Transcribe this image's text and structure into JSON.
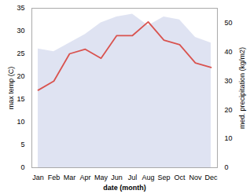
{
  "chart_data": {
    "type": "line",
    "xlabel": "date (month)",
    "ylabel": "max temp (C)",
    "y2label": "med. precipitation (kg/m2)",
    "categories": [
      "Jan",
      "Feb",
      "Mar",
      "Apr",
      "May",
      "Jun",
      "Jul",
      "Aug",
      "Sep",
      "Oct",
      "Nov",
      "Dec"
    ],
    "series": [
      {
        "type": "area",
        "axis": "y2",
        "color": "#c5cce8",
        "values": [
          41,
          40,
          43,
          46,
          50,
          52,
          53,
          49,
          52,
          51,
          45,
          43
        ]
      },
      {
        "type": "line",
        "color": "#d9534f",
        "values": [
          17,
          19,
          25,
          26,
          24,
          29,
          29,
          32,
          28,
          27,
          23,
          22
        ]
      }
    ],
    "ylim": [
      0,
      35
    ],
    "yticks": [
      0,
      5,
      10,
      15,
      20,
      25,
      30,
      35
    ],
    "y2lim": [
      0,
      55
    ],
    "y2ticks": [
      0,
      10,
      20,
      30,
      40,
      50
    ],
    "grid": false
  }
}
